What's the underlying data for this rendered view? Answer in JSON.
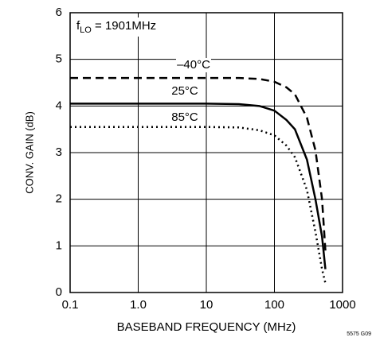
{
  "chart_data": {
    "type": "line",
    "xlabel": "BASEBAND FREQUENCY (MHz)",
    "ylabel": "CONV. GAIN (dB)",
    "annotation": {
      "f": "f",
      "sub": "LO",
      "rest": " = 1901MHz"
    },
    "figure_id": "5575 G09",
    "xscale": "log",
    "grid": true,
    "x": [
      0.1,
      1,
      10,
      30,
      60,
      100,
      150,
      200,
      300,
      400,
      500,
      560
    ],
    "series": [
      {
        "name": "–40°C",
        "color": "#000000",
        "dash": "10,6",
        "values": [
          4.6,
          4.6,
          4.6,
          4.6,
          4.58,
          4.52,
          4.4,
          4.25,
          3.75,
          3.05,
          2.0,
          0.9
        ]
      },
      {
        "name": "25°C",
        "color": "#000000",
        "dash": "none",
        "values": [
          4.05,
          4.05,
          4.05,
          4.04,
          4.0,
          3.9,
          3.7,
          3.5,
          2.85,
          2.0,
          1.2,
          0.5
        ]
      },
      {
        "name": "85°C",
        "color": "#000000",
        "dash": "2,4",
        "values": [
          3.55,
          3.55,
          3.55,
          3.54,
          3.48,
          3.37,
          3.15,
          2.9,
          2.2,
          1.3,
          0.5,
          0.2
        ]
      }
    ],
    "xlim": [
      0.1,
      1000
    ],
    "xticks": [
      0.1,
      {
        "value": 1,
        "label": "1.0"
      },
      10,
      100,
      1000
    ],
    "ylim": [
      0,
      6
    ],
    "yticks": [
      0,
      1,
      2,
      3,
      4,
      5,
      6
    ]
  }
}
